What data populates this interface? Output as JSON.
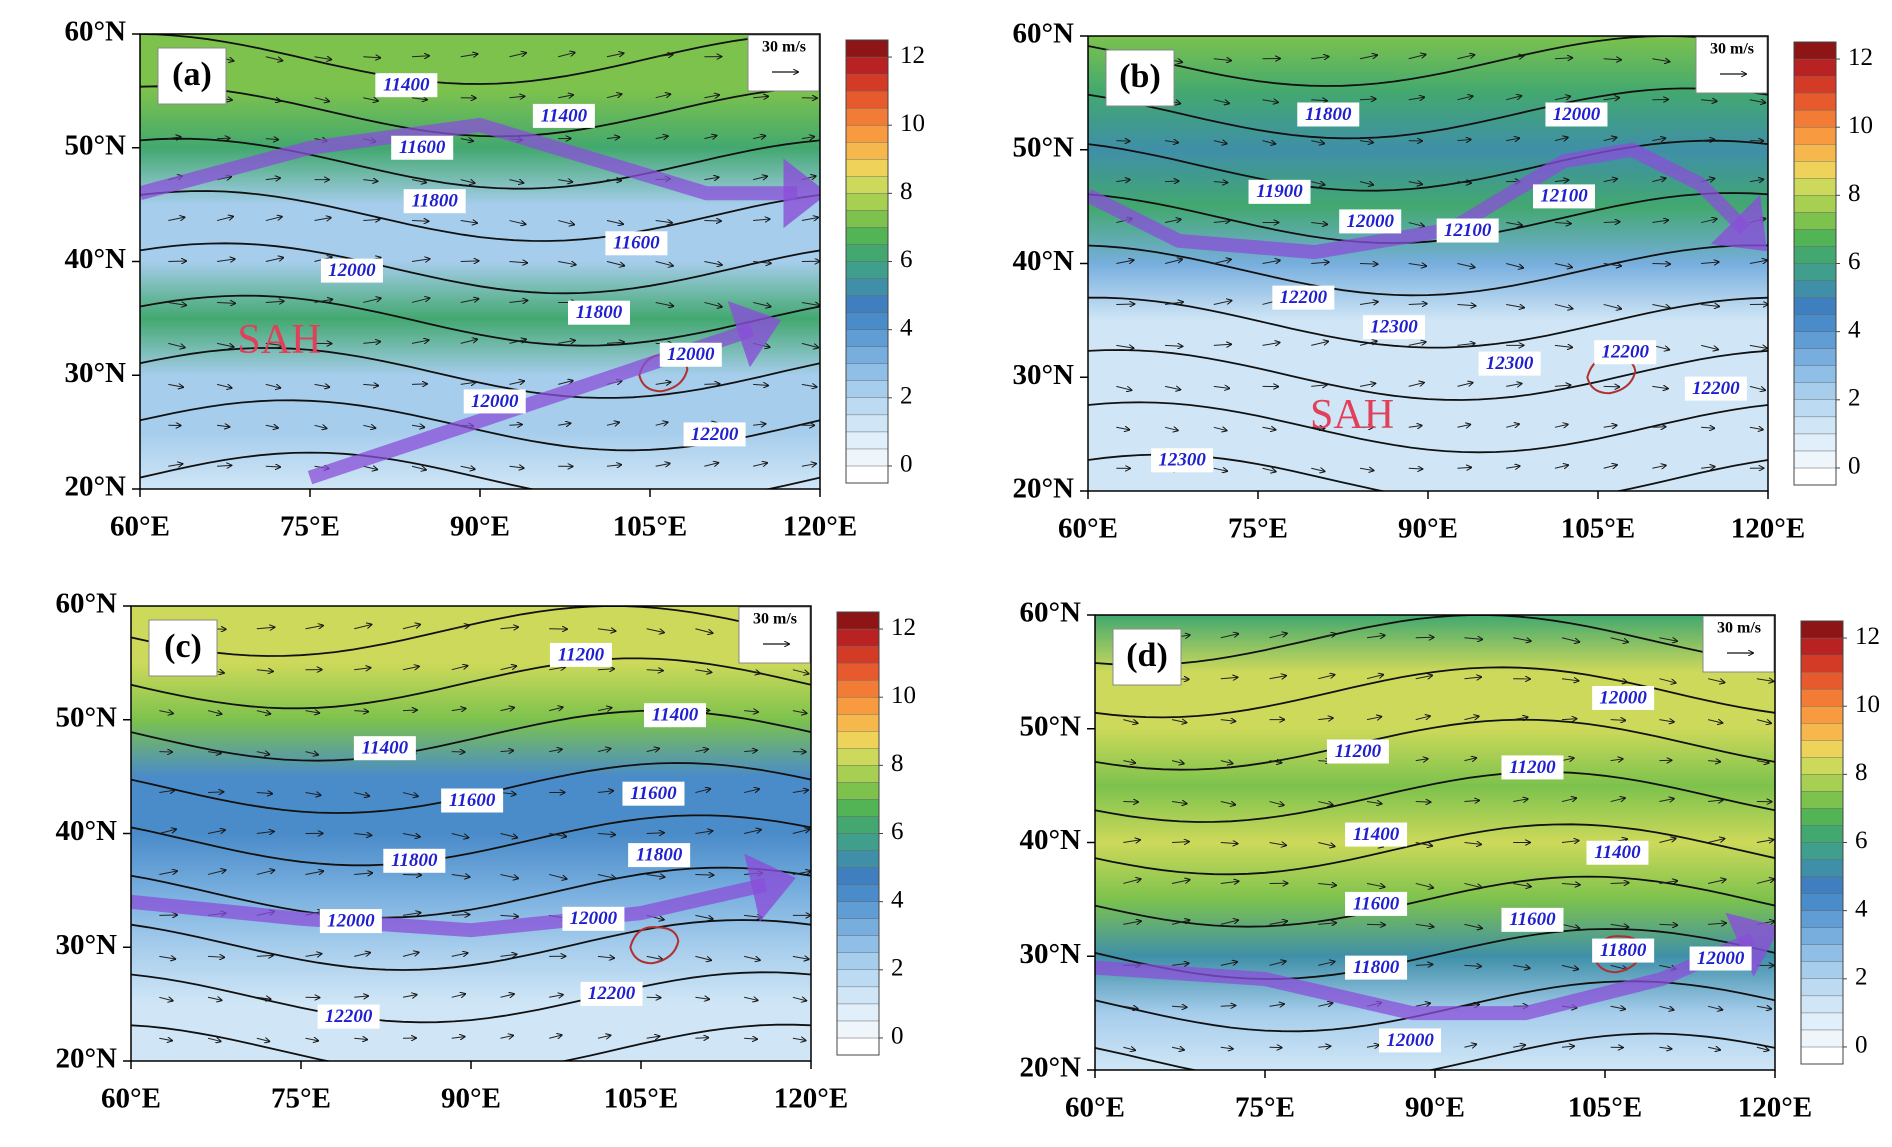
{
  "figure": {
    "lon_lim": [
      60,
      120
    ],
    "lat_lim": [
      20,
      60
    ],
    "x_ticks": [
      {
        "value": 60,
        "label": "60°E"
      },
      {
        "value": 75,
        "label": "75°E"
      },
      {
        "value": 90,
        "label": "90°E"
      },
      {
        "value": 105,
        "label": "105°E"
      },
      {
        "value": 120,
        "label": "120°E"
      }
    ],
    "y_ticks": [
      {
        "value": 20,
        "label": "20°N"
      },
      {
        "value": 30,
        "label": "30°N"
      },
      {
        "value": 40,
        "label": "40°N"
      },
      {
        "value": 50,
        "label": "50°N"
      },
      {
        "value": 60,
        "label": "60°N"
      }
    ],
    "reference_vector": "30 m/s",
    "colorbar": {
      "lim": [
        -0.5,
        12.5
      ],
      "ticks": [
        0,
        2,
        4,
        6,
        8,
        10,
        12
      ],
      "colors": [
        "#ffffff",
        "#eef6fc",
        "#e1effa",
        "#d0e6f6",
        "#bcdbf2",
        "#a6cdec",
        "#8fbee6",
        "#77aede",
        "#5f9dd4",
        "#4a8bc9",
        "#3f7fbf",
        "#3f8fa8",
        "#3f9e8c",
        "#42a86f",
        "#52b454",
        "#7cc24d",
        "#a7cf52",
        "#cdd95a",
        "#efd25a",
        "#f6b84c",
        "#f79a40",
        "#f27b35",
        "#e75a2d",
        "#d33b27",
        "#b82222",
        "#8e1515"
      ]
    },
    "panels": [
      {
        "label": "(a)",
        "wind_speed_by_lat": {
          "lat": [
            60,
            55,
            50,
            45,
            40,
            35,
            30,
            25,
            20
          ],
          "values": [
            7,
            7,
            6,
            2,
            2,
            6,
            2,
            2,
            1
          ]
        },
        "contour_labels": [
          {
            "value": 11400,
            "lon": 83.5,
            "lat": 55.5
          },
          {
            "value": 11400,
            "lon": 97.4,
            "lat": 52.8
          },
          {
            "value": 11600,
            "lon": 84.9,
            "lat": 50
          },
          {
            "value": 11800,
            "lon": 86,
            "lat": 45.3
          },
          {
            "value": 12000,
            "lon": 78.7,
            "lat": 39.2
          },
          {
            "value": 11600,
            "lon": 103.8,
            "lat": 41.6
          },
          {
            "value": 11800,
            "lon": 100.5,
            "lat": 35.5
          },
          {
            "value": 12000,
            "lon": 91.3,
            "lat": 27.7
          },
          {
            "value": 12000,
            "lon": 108.6,
            "lat": 31.8
          },
          {
            "value": 12200,
            "lon": 110.7,
            "lat": 24.8
          }
        ],
        "annotation": {
          "text": "SAH",
          "lon": 72.3,
          "lat": 32.8
        }
      },
      {
        "label": "(b)",
        "wind_speed_by_lat": {
          "lat": [
            60,
            55,
            50,
            45,
            40,
            35,
            30,
            25,
            20
          ],
          "values": [
            7,
            6,
            5,
            6,
            3,
            1,
            1,
            1,
            1
          ]
        },
        "contour_labels": [
          {
            "value": 11800,
            "lon": 81.2,
            "lat": 53.1
          },
          {
            "value": 11900,
            "lon": 76.9,
            "lat": 46.3
          },
          {
            "value": 12000,
            "lon": 84.9,
            "lat": 43.7
          },
          {
            "value": 12100,
            "lon": 93.5,
            "lat": 42.9
          },
          {
            "value": 12100,
            "lon": 102,
            "lat": 45.9
          },
          {
            "value": 12000,
            "lon": 103.1,
            "lat": 53.1
          },
          {
            "value": 12200,
            "lon": 79,
            "lat": 37
          },
          {
            "value": 12300,
            "lon": 87,
            "lat": 34.4
          },
          {
            "value": 12300,
            "lon": 97.2,
            "lat": 31.2
          },
          {
            "value": 12200,
            "lon": 107.4,
            "lat": 32.2
          },
          {
            "value": 12200,
            "lon": 115.4,
            "lat": 29
          },
          {
            "value": 12300,
            "lon": 68.3,
            "lat": 22.7
          }
        ],
        "annotation": {
          "text": "SAH",
          "lon": 83.3,
          "lat": 26.4
        }
      },
      {
        "label": "(c)",
        "wind_speed_by_lat": {
          "lat": [
            60,
            55,
            50,
            45,
            40,
            35,
            30,
            25,
            20
          ],
          "values": [
            8,
            8,
            7,
            4,
            4,
            3,
            2,
            1,
            1
          ]
        },
        "contour_labels": [
          {
            "value": 11200,
            "lon": 99.7,
            "lat": 55.7
          },
          {
            "value": 11400,
            "lon": 108,
            "lat": 50.4
          },
          {
            "value": 11400,
            "lon": 82.4,
            "lat": 47.5
          },
          {
            "value": 11600,
            "lon": 90.1,
            "lat": 42.9
          },
          {
            "value": 11600,
            "lon": 106.1,
            "lat": 43.5
          },
          {
            "value": 11800,
            "lon": 85,
            "lat": 37.6
          },
          {
            "value": 11800,
            "lon": 106.6,
            "lat": 38.1
          },
          {
            "value": 12000,
            "lon": 79.4,
            "lat": 32.3
          },
          {
            "value": 12000,
            "lon": 100.8,
            "lat": 32.5
          },
          {
            "value": 12200,
            "lon": 102.4,
            "lat": 25.9
          },
          {
            "value": 12200,
            "lon": 79.2,
            "lat": 23.9
          }
        ]
      },
      {
        "label": "(d)",
        "wind_speed_by_lat": {
          "lat": [
            60,
            55,
            50,
            45,
            40,
            35,
            30,
            25,
            20
          ],
          "values": [
            6,
            8,
            8,
            7,
            8,
            7,
            5,
            2,
            1
          ]
        },
        "contour_labels": [
          {
            "value": 12000,
            "lon": 106.6,
            "lat": 52.7
          },
          {
            "value": 11200,
            "lon": 83.2,
            "lat": 48
          },
          {
            "value": 11200,
            "lon": 98.6,
            "lat": 46.6
          },
          {
            "value": 11400,
            "lon": 84.8,
            "lat": 40.7
          },
          {
            "value": 11400,
            "lon": 106.1,
            "lat": 39.1
          },
          {
            "value": 11600,
            "lon": 84.8,
            "lat": 34.6
          },
          {
            "value": 11600,
            "lon": 98.6,
            "lat": 33.2
          },
          {
            "value": 11800,
            "lon": 84.8,
            "lat": 29
          },
          {
            "value": 11800,
            "lon": 106.6,
            "lat": 30.5
          },
          {
            "value": 12000,
            "lon": 87.8,
            "lat": 22.6
          },
          {
            "value": 12000,
            "lon": 115.2,
            "lat": 29.8
          }
        ]
      }
    ]
  }
}
